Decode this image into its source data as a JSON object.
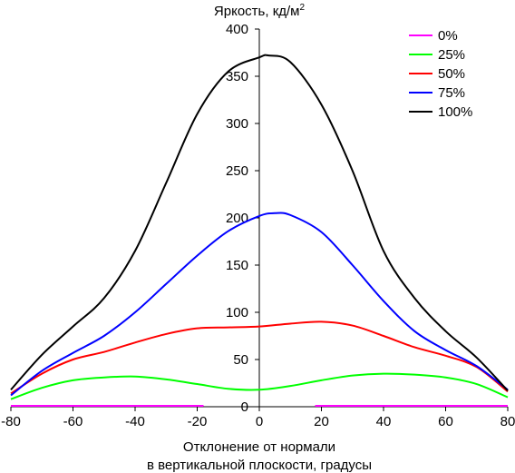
{
  "chart_data": {
    "type": "line",
    "title": "Яркость, кд/м²",
    "ylabel_main": "Яркость, кд/м",
    "ylabel_sup": "2",
    "xlabel_line1": "Отклонение от нормали",
    "xlabel_line2": "в вертикальной плоскости, градусы",
    "xlim": [
      -80,
      80
    ],
    "ylim": [
      0,
      400
    ],
    "xticks": [
      -80,
      -60,
      -40,
      -20,
      0,
      20,
      40,
      60,
      80
    ],
    "yticks": [
      0,
      50,
      100,
      150,
      200,
      250,
      300,
      350,
      400
    ],
    "grid": false,
    "legend_position": "top-right",
    "series": [
      {
        "name": "0%",
        "color": "#ff00ff",
        "x": [
          -80,
          -60,
          -40,
          -20,
          -19,
          19,
          20,
          40,
          60,
          80
        ],
        "y": [
          1,
          1,
          1,
          1,
          1,
          1,
          1,
          1,
          1,
          1
        ]
      },
      {
        "name": "25%",
        "color": "#00ff00",
        "x": [
          -80,
          -70,
          -60,
          -50,
          -40,
          -30,
          -20,
          -10,
          0,
          10,
          20,
          30,
          40,
          50,
          60,
          70,
          80
        ],
        "y": [
          8,
          20,
          28,
          31,
          32,
          29,
          24,
          19,
          18,
          22,
          28,
          33,
          35,
          34,
          31,
          24,
          10
        ]
      },
      {
        "name": "50%",
        "color": "#ff0000",
        "x": [
          -80,
          -70,
          -60,
          -50,
          -40,
          -30,
          -20,
          -10,
          0,
          10,
          20,
          30,
          40,
          50,
          60,
          70,
          80
        ],
        "y": [
          14,
          35,
          50,
          58,
          68,
          77,
          83,
          84,
          85,
          88,
          90,
          86,
          75,
          63,
          54,
          42,
          16
        ]
      },
      {
        "name": "75%",
        "color": "#0000ff",
        "x": [
          -80,
          -70,
          -60,
          -50,
          -40,
          -30,
          -20,
          -10,
          0,
          5,
          10,
          20,
          30,
          40,
          50,
          60,
          70,
          80
        ],
        "y": [
          12,
          38,
          57,
          75,
          100,
          130,
          160,
          186,
          202,
          205,
          203,
          185,
          150,
          112,
          80,
          60,
          43,
          18
        ]
      },
      {
        "name": "100%",
        "color": "#000000",
        "x": [
          -80,
          -70,
          -60,
          -50,
          -40,
          -30,
          -20,
          -10,
          0,
          3,
          10,
          20,
          30,
          40,
          50,
          60,
          70,
          80
        ],
        "y": [
          18,
          55,
          85,
          115,
          165,
          237,
          310,
          355,
          370,
          372,
          365,
          320,
          250,
          165,
          115,
          80,
          52,
          17
        ]
      }
    ]
  }
}
